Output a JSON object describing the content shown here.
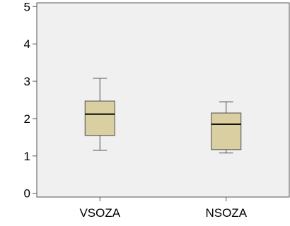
{
  "chart_data": {
    "type": "boxplot",
    "title": "",
    "xlabel": "",
    "ylabel": "",
    "categories": [
      "VSOZA",
      "NSOZA"
    ],
    "boxes": [
      {
        "name": "VSOZA",
        "min": 1.15,
        "q1": 1.55,
        "median": 2.12,
        "q3": 2.47,
        "max": 3.08
      },
      {
        "name": "NSOZA",
        "min": 1.08,
        "q1": 1.17,
        "median": 1.85,
        "q3": 2.15,
        "max": 2.45
      }
    ],
    "ylim": [
      -0.1,
      5.1
    ],
    "yticks": [
      0,
      1,
      2,
      3,
      4,
      5
    ],
    "ytick_labels": [
      "0",
      "1",
      "2",
      "3",
      "4",
      "5"
    ],
    "grid": false,
    "legend": "none",
    "colors": {
      "plot_background": "#F0F0F0",
      "box_fill": "#D9CFA0",
      "box_stroke": "#4D4D4D",
      "median": "#000000",
      "axis": "#555555"
    }
  }
}
